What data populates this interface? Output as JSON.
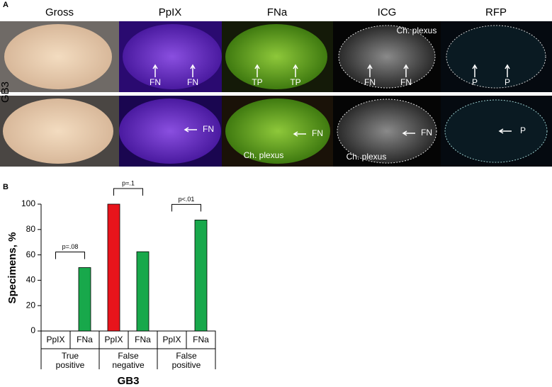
{
  "panel_a": {
    "label": "A",
    "row_label": "GB3",
    "columns": [
      "Gross",
      "PpIX",
      "FNa",
      "ICG",
      "RFP"
    ],
    "rows": [
      {
        "cells": [
          [],
          [
            "FN",
            "FN"
          ],
          [
            "TP",
            "TP"
          ],
          [
            "Ch. plexus",
            "FN",
            "FN"
          ],
          [
            "P",
            "P"
          ]
        ]
      },
      {
        "cells": [
          [],
          [
            "FN"
          ],
          [
            "FN",
            "Ch. plexus"
          ],
          [
            "FN",
            "Ch. plexus"
          ],
          [
            "P"
          ]
        ]
      }
    ]
  },
  "chart_data": {
    "type": "bar",
    "panel_label": "B",
    "ylabel": "Specimens, %",
    "xlabel": "GB3",
    "categories": [
      "PpIX",
      "FNa",
      "PpIX",
      "FNa",
      "PpIX",
      "FNa"
    ],
    "values": [
      0,
      50,
      100,
      62.5,
      0,
      87.5
    ],
    "colors": [
      "#e8141b",
      "#18a84b",
      "#e8141b",
      "#18a84b",
      "#e8141b",
      "#18a84b"
    ],
    "groups": [
      [
        "True",
        "positive"
      ],
      [
        "False",
        "negative"
      ],
      [
        "False",
        "positive"
      ]
    ],
    "group_annotations": [
      "p=.08",
      "p=.1",
      "p<.01"
    ],
    "ylim": [
      0,
      100
    ],
    "yticks": [
      0,
      20,
      40,
      60,
      80,
      100
    ]
  }
}
